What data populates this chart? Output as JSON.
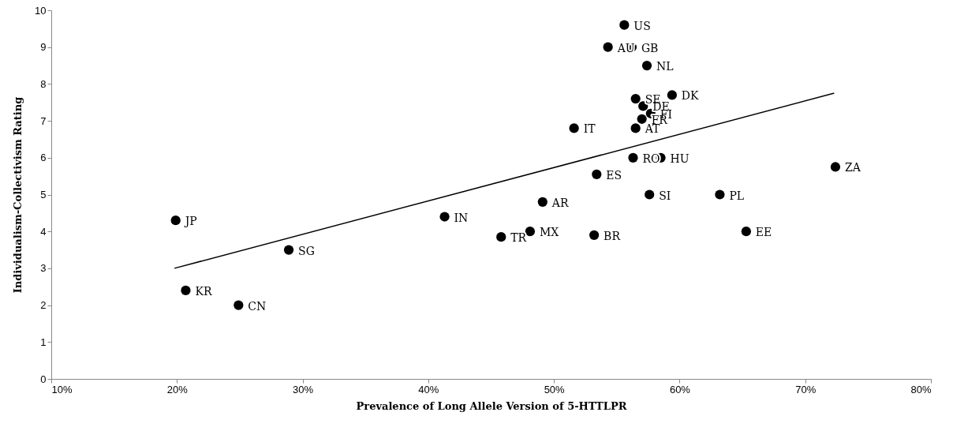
{
  "chart_data": {
    "type": "scatter",
    "xlabel": "Prevalence of Long Allele Version of 5-HTTLPR",
    "ylabel": "Individualism-Collectivism Rating",
    "xlim": [
      10,
      80
    ],
    "xticks": [
      {
        "value": 10,
        "label": "10%"
      },
      {
        "value": 20,
        "label": "20%"
      },
      {
        "value": 30,
        "label": "30%"
      },
      {
        "value": 40,
        "label": "40%"
      },
      {
        "value": 50,
        "label": "50%"
      },
      {
        "value": 60,
        "label": "60%"
      },
      {
        "value": 70,
        "label": "70%"
      },
      {
        "value": 80,
        "label": "80%"
      }
    ],
    "ylim": [
      0,
      10
    ],
    "yticks": [
      0,
      1,
      2,
      3,
      4,
      5,
      6,
      7,
      8,
      9,
      10
    ],
    "grid": false,
    "marker": "circle",
    "series": [
      {
        "color": "#000000",
        "x": [
          55.6,
          54.3,
          56.2,
          57.4,
          59.4,
          56.5,
          57.1,
          57.7,
          57.0,
          56.5,
          51.6,
          56.3,
          58.5,
          53.4,
          49.1,
          57.6,
          63.2,
          53.2,
          65.3,
          48.1,
          19.9,
          20.7,
          24.9,
          28.9,
          41.3,
          45.8,
          72.4
        ],
        "values": [
          9.6,
          9.0,
          9.0,
          8.5,
          7.7,
          7.6,
          7.4,
          7.2,
          7.05,
          6.8,
          6.8,
          6.0,
          6.0,
          5.55,
          4.8,
          5.0,
          5.0,
          3.9,
          4.0,
          4.0,
          4.3,
          2.4,
          2.0,
          3.5,
          4.4,
          3.85,
          5.75
        ],
        "value_labels": [
          "US",
          "AU",
          "GB",
          "NL",
          "DK",
          "SE",
          "DE",
          "FI",
          "FR",
          "AT",
          "IT",
          "RO",
          "HU",
          "ES",
          "AR",
          "SI",
          "PL",
          "BR",
          "EE",
          "MX",
          "JP",
          "KR",
          "CN",
          "SG",
          "IN",
          "TR",
          "ZA"
        ]
      },
      {
        "type": "line",
        "color": "#000000",
        "marker": "none",
        "x": [
          19.8,
          72.3
        ],
        "values": [
          3.0,
          7.75
        ]
      }
    ]
  }
}
